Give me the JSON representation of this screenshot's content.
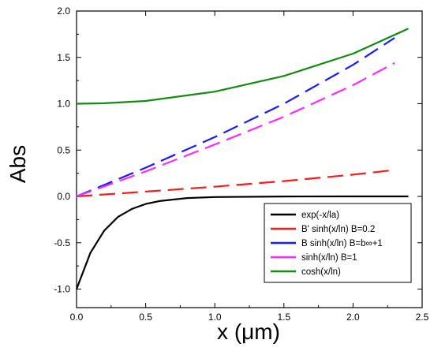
{
  "chart_data": {
    "type": "line",
    "xlabel": "x (μm)",
    "ylabel": "Abs",
    "xlim": [
      0,
      2.5
    ],
    "ylim": [
      -1.2,
      2.0
    ],
    "xticks": [
      0.0,
      0.5,
      1.0,
      1.5,
      2.0,
      2.5
    ],
    "yticks": [
      -1.0,
      -0.5,
      0.0,
      0.5,
      1.0,
      1.5,
      2.0
    ],
    "xtick_labels": [
      "0.0",
      "0.5",
      "1.0",
      "1.5",
      "2.0",
      "2.5"
    ],
    "ytick_labels": [
      "-1.0",
      "-0.5",
      "0.0",
      "0.5",
      "1.0",
      "1.5",
      "2.0"
    ],
    "legend_position": "bottom-right",
    "series": [
      {
        "name": "exp(-x/la)",
        "color": "#000000",
        "dash": "solid",
        "x": [
          0.0,
          0.1,
          0.2,
          0.3,
          0.4,
          0.5,
          0.6,
          0.8,
          1.0,
          1.5,
          2.0,
          2.4
        ],
        "y": [
          -1.0,
          -0.61,
          -0.37,
          -0.22,
          -0.135,
          -0.082,
          -0.05,
          -0.018,
          -0.007,
          -0.001,
          0.0,
          0.0
        ]
      },
      {
        "name": "B' sinh(x/ln) B=0.2",
        "color": "#ff1a1a",
        "dash": "dashed",
        "x": [
          0.0,
          0.5,
          1.0,
          1.5,
          2.0,
          2.3
        ],
        "y": [
          0.0,
          0.052,
          0.105,
          0.165,
          0.235,
          0.285
        ]
      },
      {
        "name": "B sinh(x/ln) B=b∞+1",
        "color": "#1a1aff",
        "dash": "dashed",
        "x": [
          0.0,
          0.5,
          1.0,
          1.5,
          2.0,
          2.3
        ],
        "y": [
          0.0,
          0.31,
          0.64,
          1.0,
          1.42,
          1.71
        ]
      },
      {
        "name": "sinh(x/ln) B=1",
        "color": "#ff2bff",
        "dash": "dashed",
        "x": [
          0.0,
          0.5,
          1.0,
          1.5,
          2.0,
          2.3
        ],
        "y": [
          0.0,
          0.27,
          0.56,
          0.86,
          1.2,
          1.44
        ]
      },
      {
        "name": "cosh(x/ln)",
        "color": "#138a13",
        "dash": "solid",
        "x": [
          0.0,
          0.2,
          0.5,
          1.0,
          1.5,
          2.0,
          2.4
        ],
        "y": [
          1.0,
          1.005,
          1.03,
          1.13,
          1.3,
          1.54,
          1.81
        ]
      }
    ]
  }
}
